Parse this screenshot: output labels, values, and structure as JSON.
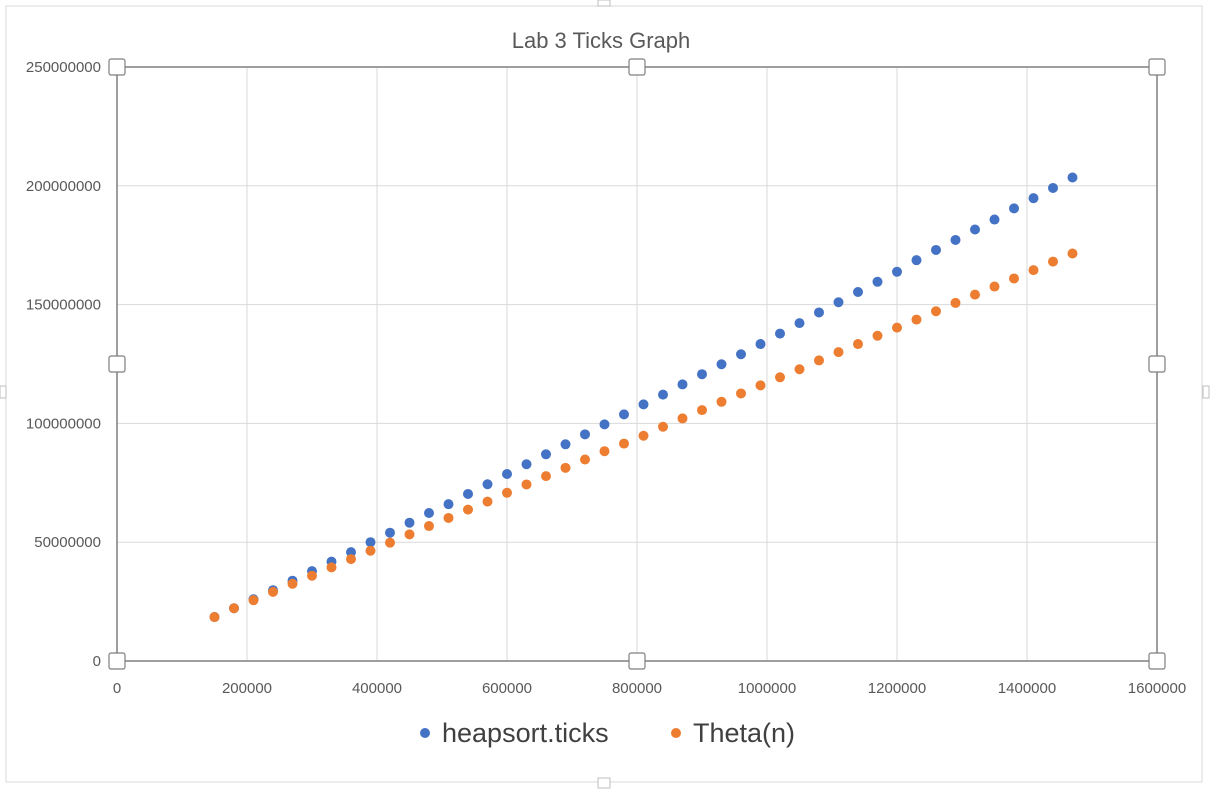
{
  "chart_data": {
    "type": "scatter",
    "title": "Lab 3 Ticks Graph",
    "xlabel": "",
    "ylabel": "",
    "xlim": [
      0,
      1600000
    ],
    "ylim": [
      0,
      250000000
    ],
    "x_ticks": [
      0,
      200000,
      400000,
      600000,
      800000,
      1000000,
      1200000,
      1400000,
      1600000
    ],
    "y_ticks": [
      0,
      50000000,
      100000000,
      150000000,
      200000000,
      250000000
    ],
    "grid": true,
    "legend_position": "bottom",
    "series": [
      {
        "name": "heapsort.ticks",
        "color": "#4472C4",
        "x": [
          150000,
          180000,
          210000,
          240000,
          270000,
          300000,
          330000,
          360000,
          390000,
          420000,
          450000,
          480000,
          510000,
          540000,
          570000,
          600000,
          630000,
          660000,
          690000,
          720000,
          750000,
          780000,
          810000,
          840000,
          870000,
          900000,
          930000,
          960000,
          990000,
          1020000,
          1050000,
          1080000,
          1110000,
          1140000,
          1170000,
          1200000,
          1230000,
          1260000,
          1290000,
          1320000,
          1350000,
          1380000,
          1410000,
          1440000,
          1470000
        ],
        "y": [
          18500000,
          22200000,
          26000000,
          29800000,
          33800000,
          37800000,
          41800000,
          45800000,
          50000000,
          54000000,
          58200000,
          62300000,
          66000000,
          70300000,
          74400000,
          78700000,
          82800000,
          87000000,
          91200000,
          95400000,
          99600000,
          103800000,
          108000000,
          112100000,
          116400000,
          120700000,
          124900000,
          129100000,
          133400000,
          137800000,
          142200000,
          146700000,
          151000000,
          155300000,
          159600000,
          163800000,
          168700000,
          173000000,
          177200000,
          181600000,
          185800000,
          190500000,
          194800000,
          199100000,
          203500000
        ]
      },
      {
        "name": "Theta(n)",
        "color": "#ED7D31",
        "x": [
          150000,
          180000,
          210000,
          240000,
          270000,
          300000,
          330000,
          360000,
          390000,
          420000,
          450000,
          480000,
          510000,
          540000,
          570000,
          600000,
          630000,
          660000,
          690000,
          720000,
          750000,
          780000,
          810000,
          840000,
          870000,
          900000,
          930000,
          960000,
          990000,
          1020000,
          1050000,
          1080000,
          1110000,
          1140000,
          1170000,
          1200000,
          1230000,
          1260000,
          1290000,
          1320000,
          1350000,
          1380000,
          1410000,
          1440000,
          1470000
        ],
        "y": [
          18500000,
          22200000,
          25600000,
          29100000,
          32500000,
          35900000,
          39400000,
          42900000,
          46400000,
          49800000,
          53300000,
          56800000,
          60200000,
          63700000,
          67100000,
          70800000,
          74300000,
          77800000,
          81300000,
          84800000,
          88300000,
          91500000,
          94800000,
          98600000,
          102100000,
          105600000,
          109100000,
          112600000,
          116000000,
          119400000,
          122800000,
          126500000,
          130000000,
          133400000,
          136900000,
          140300000,
          143700000,
          147200000,
          150700000,
          154200000,
          157600000,
          161000000,
          164500000,
          168100000,
          171500000
        ]
      }
    ]
  }
}
